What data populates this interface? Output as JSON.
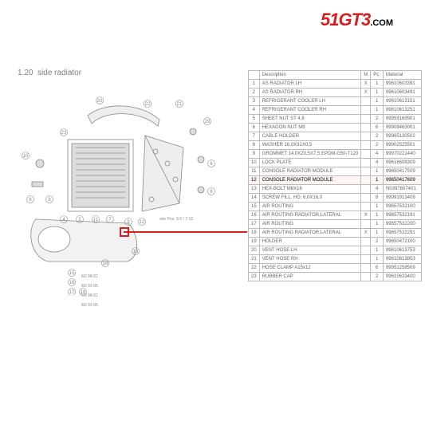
{
  "logo": {
    "part1": "51GT3",
    "part2": ".COM"
  },
  "section": {
    "num": "1.20",
    "label": "side radiator"
  },
  "table": {
    "headers": {
      "num": "",
      "desc": "Description",
      "m": "M",
      "pc": "Pc.",
      "mat": "Material"
    },
    "rows": [
      {
        "n": "1",
        "desc": "AS RADIATOR LH",
        "m": "X",
        "pc": "1",
        "mat": "99610603391"
      },
      {
        "n": "2",
        "desc": "AS RADIATOR RH",
        "m": "X",
        "pc": "1",
        "mat": "99610603491"
      },
      {
        "n": "3",
        "desc": "REFRIGERANT COOLER LH",
        "m": "",
        "pc": "1",
        "mat": "99610613151"
      },
      {
        "n": "4",
        "desc": "REFRIGERANT COOLER RH",
        "m": "",
        "pc": "1",
        "mat": "99610613251"
      },
      {
        "n": "5",
        "desc": "SHEET NUT ST 4,8",
        "m": "",
        "pc": "2",
        "mat": "99959169901"
      },
      {
        "n": "6",
        "desc": "HEXAGON NUT M8",
        "m": "",
        "pc": "6",
        "mat": "99908463001"
      },
      {
        "n": "7",
        "desc": "CABLE HOLDER",
        "m": "",
        "pc": "2",
        "mat": "99965130502"
      },
      {
        "n": "8",
        "desc": "WASHER 16,0X32X0,5",
        "m": "",
        "pc": "2",
        "mat": "99902525501"
      },
      {
        "n": "9",
        "desc": "GROMMET 14,0X20,5X7,5 EPDM-G50-T120",
        "m": "",
        "pc": "4",
        "mat": "99970221440"
      },
      {
        "n": "10",
        "desc": "LOCK PLATE",
        "m": "",
        "pc": "4",
        "mat": "99616608309"
      },
      {
        "n": "11",
        "desc": "CONSOLE RADIATOR MODULE",
        "m": "",
        "pc": "1",
        "mat": "99650417509"
      },
      {
        "n": "12",
        "desc": "CONSOLE RADIATOR MODULE",
        "m": "",
        "pc": "1",
        "mat": "99650417609",
        "hl": true
      },
      {
        "n": "13",
        "desc": "HEX-BOLT M8X16",
        "m": "",
        "pc": "4",
        "mat": "N0397807401"
      },
      {
        "n": "14",
        "desc": "SCREW FILL. HD. 6,0X16,0",
        "m": "",
        "pc": "8",
        "mat": "99991913409"
      },
      {
        "n": "15",
        "desc": "AIR ROUTING",
        "m": "",
        "pc": "1",
        "mat": "99657532100"
      },
      {
        "n": "16",
        "desc": "AIR ROUTING RADIATOR,LATERAL",
        "m": "X",
        "pc": "1",
        "mat": "99657532191"
      },
      {
        "n": "17",
        "desc": "AIR ROUTING",
        "m": "",
        "pc": "1",
        "mat": "99657532200"
      },
      {
        "n": "18",
        "desc": "AIR ROUTING RADIATOR,LATERAL",
        "m": "X",
        "pc": "1",
        "mat": "99657532291"
      },
      {
        "n": "19",
        "desc": "HOLDER",
        "m": "",
        "pc": "2",
        "mat": "99650472100"
      },
      {
        "n": "20",
        "desc": "VENT HOSE LH",
        "m": "",
        "pc": "1",
        "mat": "99610613753"
      },
      {
        "n": "21",
        "desc": "VENT HOSE RH",
        "m": "",
        "pc": "1",
        "mat": "99610613853"
      },
      {
        "n": "22",
        "desc": "HOSE CLAMP A15x12",
        "m": "",
        "pc": "6",
        "mat": "99951258509"
      },
      {
        "n": "23",
        "desc": "RUBBER CAP",
        "m": "",
        "pc": "2",
        "mat": "99610633400"
      }
    ]
  },
  "diagram": {
    "pos_note": "see Pos. 3-5 / 7-12",
    "legend": [
      "MJ 98-01",
      "MJ 02-05",
      "MJ 98-01",
      "MJ 02-05"
    ]
  }
}
